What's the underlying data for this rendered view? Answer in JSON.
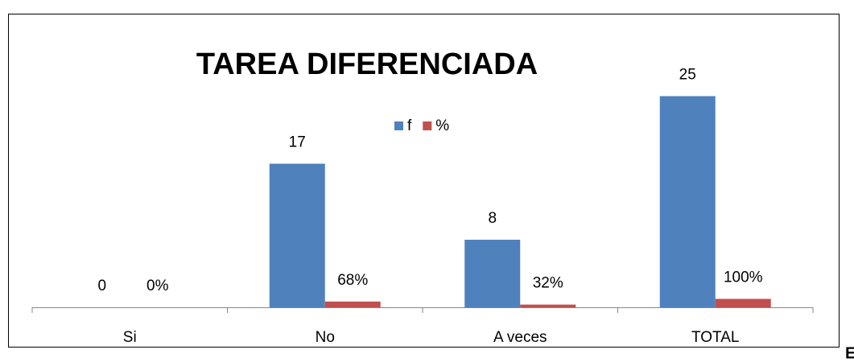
{
  "chart_data": {
    "type": "bar",
    "title": "TAREA DIFERENCIADA",
    "categories": [
      "Si",
      "No",
      "A veces",
      "TOTAL"
    ],
    "series": [
      {
        "name": "f",
        "color": "#4f81bd",
        "values": [
          0,
          17,
          8,
          25
        ]
      },
      {
        "name": "%",
        "color": "#c0504d",
        "values": [
          0,
          0.68,
          0.32,
          1
        ],
        "value_labels": [
          "0%",
          "68%",
          "32%",
          "100%"
        ]
      }
    ],
    "ylim": [
      0,
      30
    ],
    "legend": "top"
  },
  "side_text": "E"
}
